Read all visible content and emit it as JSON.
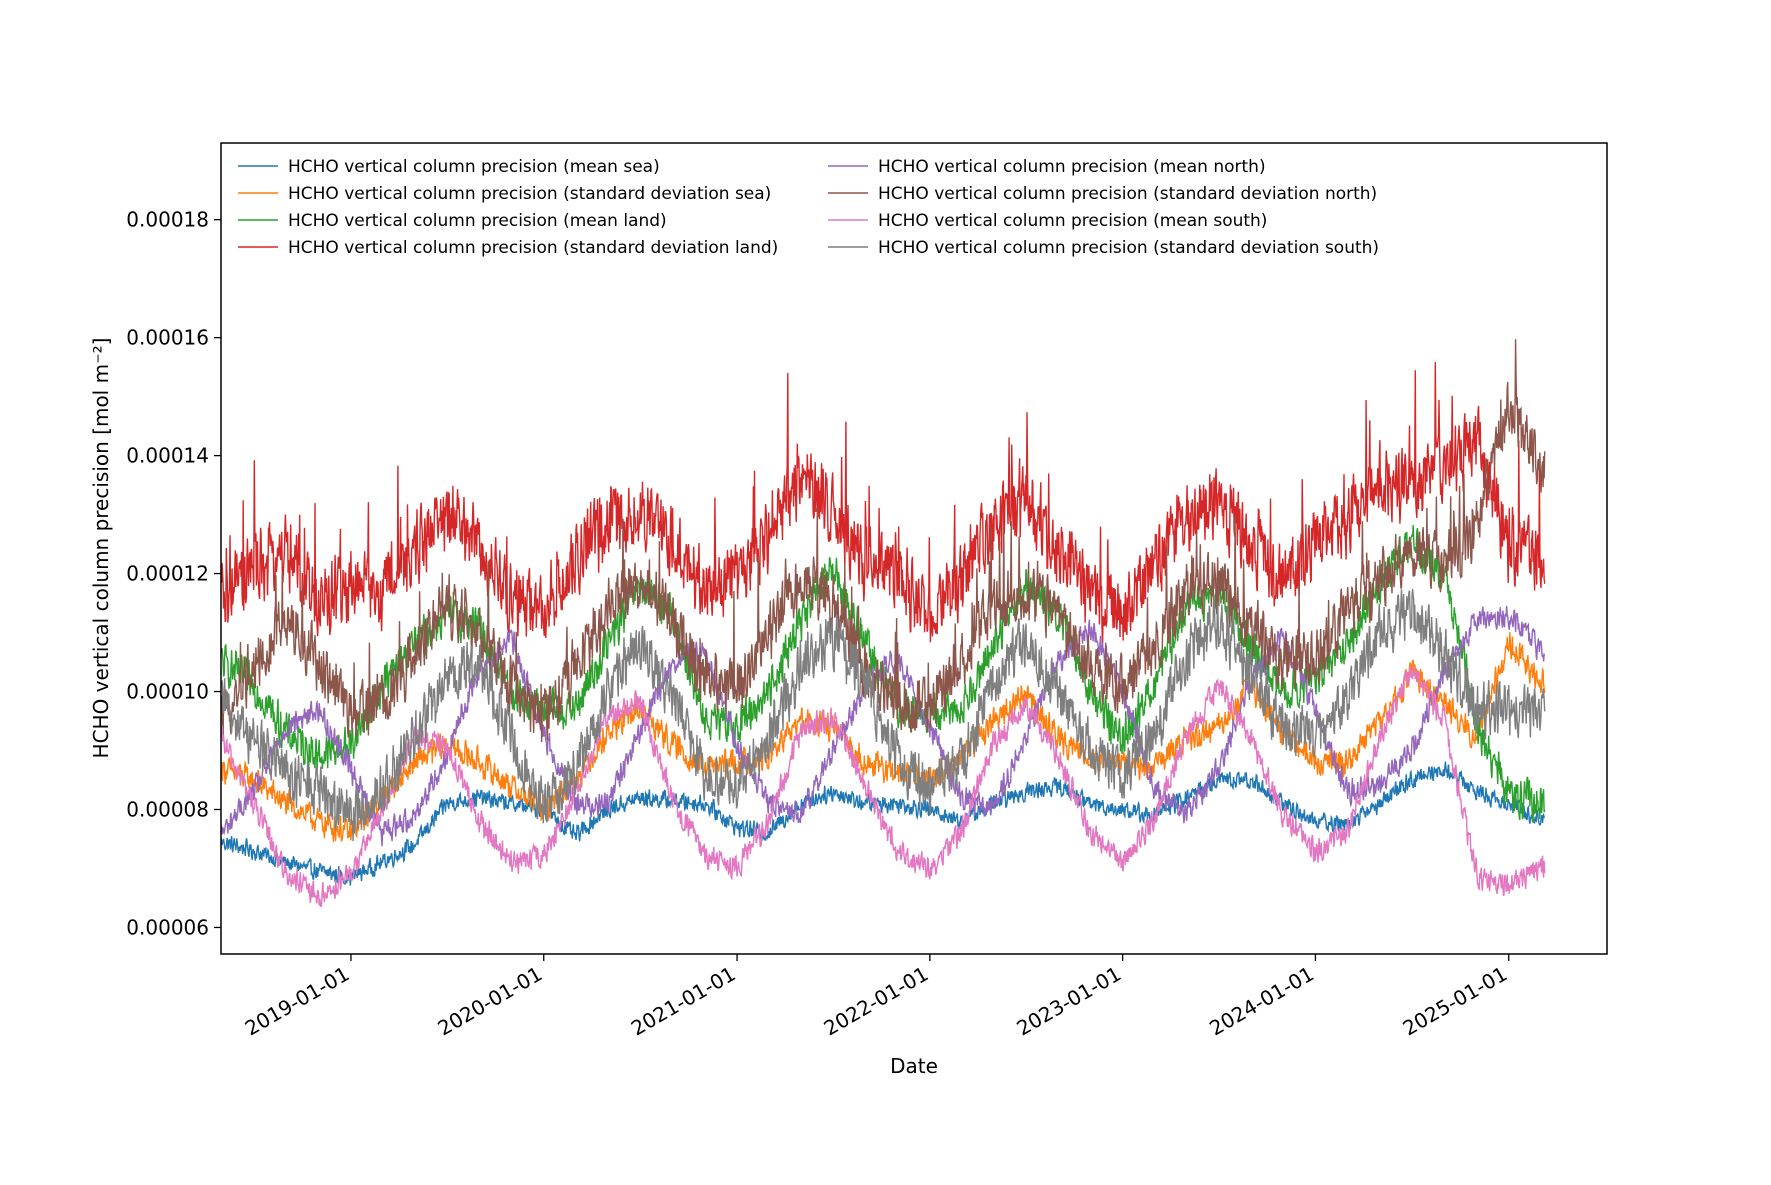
{
  "chart_data": {
    "type": "line",
    "title": "",
    "xlabel": "Date",
    "ylabel": "HCHO vertical column precision [mol m⁻²]",
    "xlim": [
      "2018-04-30",
      "2025-07-06"
    ],
    "ylim": [
      5.55e-05,
      0.000193
    ],
    "x_ticks": [
      "2019-01-01",
      "2020-01-01",
      "2021-01-01",
      "2022-01-01",
      "2023-01-01",
      "2024-01-01",
      "2025-01-01"
    ],
    "y_ticks": [
      6e-05,
      8e-05,
      0.0001,
      0.00012,
      0.00014,
      0.00016,
      0.00018
    ],
    "y_tick_labels": [
      "0.00006",
      "0.00008",
      "0.00010",
      "0.00012",
      "0.00014",
      "0.00016",
      "0.00018"
    ],
    "grid": false,
    "legend": "upper left, 2 columns",
    "x_dates": [
      "2018-05-01",
      "2018-07-01",
      "2018-09-01",
      "2018-11-01",
      "2019-01-01",
      "2019-03-01",
      "2019-05-01",
      "2019-07-01",
      "2019-09-01",
      "2019-11-01",
      "2020-01-01",
      "2020-03-01",
      "2020-05-01",
      "2020-07-01",
      "2020-09-01",
      "2020-11-01",
      "2021-01-01",
      "2021-03-01",
      "2021-05-01",
      "2021-07-01",
      "2021-09-01",
      "2021-11-01",
      "2022-01-01",
      "2022-03-01",
      "2022-05-01",
      "2022-07-01",
      "2022-09-01",
      "2022-11-01",
      "2023-01-01",
      "2023-03-01",
      "2023-05-01",
      "2023-07-01",
      "2023-09-01",
      "2023-11-01",
      "2024-01-01",
      "2024-03-01",
      "2024-05-01",
      "2024-07-01",
      "2024-09-01",
      "2024-11-01",
      "2025-01-01",
      "2025-03-01"
    ],
    "series": [
      {
        "name": "HCHO vertical column precision (mean sea)",
        "color": "#1f77b4",
        "values": [
          7.45e-05,
          7.3e-05,
          7.1e-05,
          6.95e-05,
          6.85e-05,
          7.1e-05,
          7.4e-05,
          8.1e-05,
          8.2e-05,
          8.1e-05,
          8e-05,
          7.55e-05,
          8e-05,
          8.2e-05,
          8.15e-05,
          8.1e-05,
          7.7e-05,
          7.6e-05,
          8.1e-05,
          8.3e-05,
          8.1e-05,
          8.1e-05,
          8e-05,
          7.8e-05,
          8.1e-05,
          8.3e-05,
          8.4e-05,
          8.1e-05,
          8e-05,
          7.9e-05,
          8.2e-05,
          8.5e-05,
          8.5e-05,
          8.1e-05,
          7.8e-05,
          7.75e-05,
          8.1e-05,
          8.5e-05,
          8.7e-05,
          8.3e-05,
          8.1e-05,
          7.85e-05
        ]
      },
      {
        "name": "HCHO vertical column precision (standard deviation sea)",
        "color": "#ff7f0e",
        "values": [
          8.7e-05,
          8.5e-05,
          8.1e-05,
          7.8e-05,
          7.6e-05,
          8.2e-05,
          8.8e-05,
          9.1e-05,
          8.8e-05,
          8.4e-05,
          8e-05,
          8.5e-05,
          9.3e-05,
          9.7e-05,
          9.1e-05,
          8.7e-05,
          8.8e-05,
          8.9e-05,
          9.5e-05,
          9.4e-05,
          8.8e-05,
          8.6e-05,
          8.5e-05,
          8.9e-05,
          9.5e-05,
          9.95e-05,
          9.2e-05,
          8.9e-05,
          8.8e-05,
          8.7e-05,
          9.2e-05,
          9.4e-05,
          0.000101,
          9.3e-05,
          8.8e-05,
          8.8e-05,
          9.5e-05,
          0.000103,
          9.85e-05,
          9.2e-05,
          0.000108,
          0.000102
        ]
      },
      {
        "name": "HCHO vertical column precision (mean land)",
        "color": "#2ca02c",
        "values": [
          0.000105,
          0.000101,
          9.3e-05,
          8.9e-05,
          9.1e-05,
          0.000101,
          0.000108,
          0.000113,
          0.000111,
          0.0001,
          9.7e-05,
          9.7e-05,
          0.000108,
          0.000118,
          0.000113,
          9.5e-05,
          9.4e-05,
          0.0001,
          0.000112,
          0.000121,
          0.000108,
          9.7e-05,
          9.6e-05,
          9.7e-05,
          0.000108,
          0.000118,
          0.000113,
          0.0001,
          9.2e-05,
          0.000101,
          0.000114,
          0.000117,
          0.000108,
          0.0001,
          0.000102,
          0.000108,
          0.000118,
          0.000126,
          0.000119,
          9.5e-05,
          8.2e-05,
          8.15e-05
        ]
      },
      {
        "name": "HCHO vertical column precision (standard deviation land)",
        "color": "#d62728",
        "values": [
          0.000115,
          0.000121,
          0.000124,
          0.000115,
          0.000118,
          0.000117,
          0.000124,
          0.00013,
          0.000125,
          0.000115,
          0.000114,
          0.000122,
          0.000129,
          0.00013,
          0.000125,
          0.000117,
          0.000119,
          0.000127,
          0.000137,
          0.000131,
          0.000121,
          0.00012,
          0.000113,
          0.000118,
          0.000129,
          0.000132,
          0.000124,
          0.000116,
          0.000113,
          0.000122,
          0.000129,
          0.000132,
          0.000125,
          0.000119,
          0.000125,
          0.000129,
          0.000136,
          0.000135,
          0.000138,
          0.000143,
          0.000125,
          0.000123
        ]
      },
      {
        "name": "HCHO vertical column precision (mean north)",
        "color": "#9467bd",
        "values": [
          7.6e-05,
          8.3e-05,
          9.4e-05,
          9.7e-05,
          8.7e-05,
          7.6e-05,
          7.9e-05,
          8.9e-05,
          0.000104,
          0.000109,
          9.3e-05,
          8.1e-05,
          8.1e-05,
          9.3e-05,
          0.000105,
          0.000107,
          9.1e-05,
          8.1e-05,
          7.9e-05,
          9e-05,
          0.000101,
          0.000106,
          9.4e-05,
          8.2e-05,
          8e-05,
          9.2e-05,
          0.000105,
          0.000111,
          0.0001,
          8.4e-05,
          7.9e-05,
          8.7e-05,
          0.000102,
          0.000109,
          9.7e-05,
          8.3e-05,
          8.4e-05,
          9e-05,
          0.000103,
          0.000112,
          0.000113,
          0.000107
        ]
      },
      {
        "name": "HCHO vertical column precision (standard deviation north)",
        "color": "#8c564b",
        "values": [
          9.5e-05,
          0.000105,
          0.000112,
          0.000105,
          9.6e-05,
          9.8e-05,
          0.000106,
          0.000115,
          0.00011,
          0.0001,
          9.6e-05,
          0.000104,
          0.000114,
          0.000119,
          0.000112,
          0.000102,
          0.000101,
          0.00011,
          0.000119,
          0.000115,
          0.000104,
          9.8e-05,
          9.7e-05,
          0.000105,
          0.000115,
          0.000117,
          0.000113,
          0.000103,
          0.000101,
          0.000107,
          0.000117,
          0.000119,
          0.000111,
          0.000105,
          0.000106,
          0.000113,
          0.000119,
          0.000124,
          0.000121,
          0.000128,
          0.000149,
          0.000138
        ]
      },
      {
        "name": "HCHO vertical column precision (mean south)",
        "color": "#e377c2",
        "values": [
          9.2e-05,
          8.1e-05,
          6.9e-05,
          6.5e-05,
          6.9e-05,
          8e-05,
          9.2e-05,
          9.1e-05,
          7.8e-05,
          7.1e-05,
          7.2e-05,
          8.3e-05,
          9.6e-05,
          9.8e-05,
          8.2e-05,
          7.2e-05,
          7e-05,
          7.8e-05,
          9.3e-05,
          9.6e-05,
          8.4e-05,
          7.3e-05,
          7e-05,
          7.6e-05,
          9.1e-05,
          9.8e-05,
          8.9e-05,
          7.6e-05,
          7.1e-05,
          7.8e-05,
          9.2e-05,
          0.000101,
          9.2e-05,
          7.9e-05,
          7.3e-05,
          7.6e-05,
          9.2e-05,
          0.000104,
          9.5e-05,
          6.9e-05,
          6.7e-05,
          7e-05
        ]
      },
      {
        "name": "HCHO vertical column precision (standard deviation south)",
        "color": "#7f7f7f",
        "values": [
          9.8e-05,
          9.2e-05,
          8.6e-05,
          8.3e-05,
          7.9e-05,
          8.3e-05,
          9.2e-05,
          0.000102,
          0.000105,
          9.2e-05,
          8e-05,
          8.7e-05,
          0.0001,
          0.000108,
          9.9e-05,
          8.6e-05,
          8.5e-05,
          9.2e-05,
          0.000104,
          0.000109,
          0.000101,
          8.8e-05,
          8.4e-05,
          8.8e-05,
          0.000101,
          0.000109,
          0.0001,
          9e-05,
          8.6e-05,
          9.2e-05,
          0.000106,
          0.000112,
          0.000103,
          9.4e-05,
          9.2e-05,
          9.8e-05,
          0.00011,
          0.000114,
          0.000107,
          9.7e-05,
          9.7e-05,
          9.6e-05
        ]
      }
    ]
  }
}
